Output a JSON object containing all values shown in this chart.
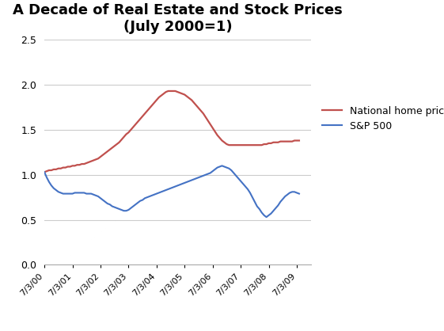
{
  "title": "A Decade of Real Estate and Stock Prices\n(July 2000=1)",
  "title_fontsize": 13,
  "background_color": "#ffffff",
  "ylim": [
    0,
    2.5
  ],
  "yticks": [
    0,
    0.5,
    1,
    1.5,
    2,
    2.5
  ],
  "xtick_labels": [
    "7/3/00",
    "7/3/01",
    "7/3/02",
    "7/3/03",
    "7/3/04",
    "7/3/05",
    "7/3/06",
    "7/3/07",
    "7/3/08",
    "7/3/09"
  ],
  "home_color": "#c0504d",
  "sp500_color": "#4472c4",
  "legend_home": "National home prices",
  "legend_sp": "S&P 500",
  "home_y": [
    1.03,
    1.04,
    1.05,
    1.05,
    1.06,
    1.06,
    1.07,
    1.07,
    1.08,
    1.08,
    1.09,
    1.09,
    1.1,
    1.1,
    1.11,
    1.11,
    1.12,
    1.12,
    1.13,
    1.14,
    1.15,
    1.16,
    1.17,
    1.18,
    1.2,
    1.22,
    1.24,
    1.26,
    1.28,
    1.3,
    1.32,
    1.34,
    1.36,
    1.39,
    1.42,
    1.45,
    1.47,
    1.5,
    1.53,
    1.56,
    1.59,
    1.62,
    1.65,
    1.68,
    1.71,
    1.74,
    1.77,
    1.8,
    1.83,
    1.86,
    1.88,
    1.9,
    1.92,
    1.93,
    1.93,
    1.93,
    1.93,
    1.92,
    1.91,
    1.9,
    1.89,
    1.87,
    1.85,
    1.83,
    1.8,
    1.77,
    1.74,
    1.71,
    1.68,
    1.64,
    1.6,
    1.56,
    1.52,
    1.48,
    1.44,
    1.41,
    1.38,
    1.36,
    1.34,
    1.33,
    1.33,
    1.33,
    1.33,
    1.33,
    1.33,
    1.33,
    1.33,
    1.33,
    1.33,
    1.33,
    1.33,
    1.33,
    1.33,
    1.33,
    1.34,
    1.34,
    1.35,
    1.35,
    1.36,
    1.36,
    1.36,
    1.37,
    1.37,
    1.37,
    1.37,
    1.37,
    1.37,
    1.38,
    1.38,
    1.38
  ],
  "sp_y": [
    1.03,
    0.97,
    0.92,
    0.88,
    0.85,
    0.83,
    0.81,
    0.8,
    0.79,
    0.79,
    0.79,
    0.79,
    0.79,
    0.8,
    0.8,
    0.8,
    0.8,
    0.8,
    0.79,
    0.79,
    0.79,
    0.78,
    0.77,
    0.76,
    0.74,
    0.72,
    0.7,
    0.68,
    0.67,
    0.65,
    0.64,
    0.63,
    0.62,
    0.61,
    0.6,
    0.6,
    0.61,
    0.63,
    0.65,
    0.67,
    0.69,
    0.71,
    0.72,
    0.74,
    0.75,
    0.76,
    0.77,
    0.78,
    0.79,
    0.8,
    0.81,
    0.82,
    0.83,
    0.84,
    0.85,
    0.86,
    0.87,
    0.88,
    0.89,
    0.9,
    0.91,
    0.92,
    0.93,
    0.94,
    0.95,
    0.96,
    0.97,
    0.98,
    0.99,
    1.0,
    1.01,
    1.02,
    1.04,
    1.06,
    1.08,
    1.09,
    1.1,
    1.09,
    1.08,
    1.07,
    1.05,
    1.02,
    0.99,
    0.96,
    0.93,
    0.9,
    0.87,
    0.84,
    0.8,
    0.75,
    0.7,
    0.65,
    0.62,
    0.58,
    0.55,
    0.53,
    0.55,
    0.57,
    0.6,
    0.63,
    0.66,
    0.7,
    0.73,
    0.76,
    0.78,
    0.8,
    0.81,
    0.81,
    0.8,
    0.79
  ],
  "xtick_positions": [
    0,
    12,
    24,
    36,
    48,
    60,
    72,
    84,
    96,
    108
  ]
}
